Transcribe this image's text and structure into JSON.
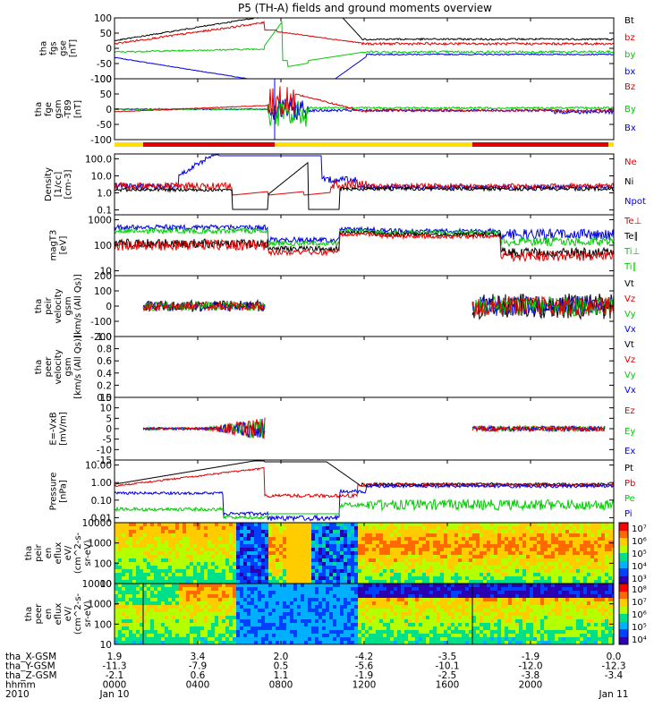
{
  "title": "P5 (TH-A) fields and ground moments overview",
  "colors": {
    "black": "#000000",
    "red": "#e00000",
    "green": "#00cc00",
    "blue": "#0000e0",
    "yellow": "#ffe000"
  },
  "chart_data": [
    {
      "id": "fgs",
      "type": "line",
      "ylabel": [
        "tha",
        "fgs",
        "gse",
        "[nT]"
      ],
      "ylim": [
        -100,
        100
      ],
      "yticks": [
        "100",
        "50",
        "0",
        "-50",
        "-100"
      ],
      "series": [
        {
          "name": "Bt",
          "color": "black"
        },
        {
          "name": "bz",
          "color": "red"
        },
        {
          "name": "by",
          "color": "green"
        },
        {
          "name": "bx",
          "color": "blue"
        }
      ]
    },
    {
      "id": "fge",
      "type": "line",
      "ylabel": [
        "tha",
        "fge",
        "gsm",
        "-T89",
        "[nT]"
      ],
      "ylim": [
        -120,
        120
      ],
      "yticks": [
        "100",
        "50",
        "0",
        "-50",
        "-100"
      ],
      "series": [
        {
          "name": "Bz",
          "color": "red"
        },
        {
          "name": "By",
          "color": "green"
        },
        {
          "name": "Bx",
          "color": "blue"
        }
      ]
    },
    {
      "id": "density",
      "type": "line",
      "scale": "log",
      "ylabel": [
        "Density",
        "[1/cc]",
        "[cm-3]"
      ],
      "yticks": [
        "100.0",
        "10.0",
        "1.0",
        "0.1"
      ],
      "series": [
        {
          "name": "Ne",
          "color": "red"
        },
        {
          "name": "Ni",
          "color": "black"
        },
        {
          "name": "Npot",
          "color": "blue"
        }
      ]
    },
    {
      "id": "temp",
      "type": "line",
      "scale": "log",
      "ylabel": [
        "magT3",
        "[eV]"
      ],
      "yticks": [
        "1000",
        "100",
        "10"
      ],
      "series": [
        {
          "name": "Te⊥",
          "color": "red"
        },
        {
          "name": "Te∥",
          "color": "black"
        },
        {
          "name": "Ti⊥",
          "color": "green"
        },
        {
          "name": "Ti∥",
          "color": "green"
        }
      ]
    },
    {
      "id": "peir_vel",
      "type": "line",
      "ylabel": [
        "tha",
        "peir",
        "velocity",
        "gsm",
        "[km/s (All Qs)]"
      ],
      "ylim": [
        -200,
        200
      ],
      "yticks": [
        "200",
        "100",
        "0",
        "-100",
        "-200"
      ],
      "series": [
        {
          "name": "Vt",
          "color": "black"
        },
        {
          "name": "Vz",
          "color": "red"
        },
        {
          "name": "Vy",
          "color": "green"
        },
        {
          "name": "Vx",
          "color": "blue"
        }
      ]
    },
    {
      "id": "peer_vel",
      "type": "line",
      "ylabel": [
        "tha",
        "peer",
        "velocity",
        "gsm",
        "[km/s (All Qs)]"
      ],
      "ylim": [
        0,
        1
      ],
      "yticks": [
        "1.0",
        "0.8",
        "0.6",
        "0.4",
        "0.2",
        "0.0"
      ],
      "series": [
        {
          "name": "Vt",
          "color": "black"
        },
        {
          "name": "Vz",
          "color": "red"
        },
        {
          "name": "Vy",
          "color": "green"
        },
        {
          "name": "Vx",
          "color": "blue"
        }
      ]
    },
    {
      "id": "efield",
      "type": "line",
      "ylabel": [
        "E=-VxB",
        "[mV/m]"
      ],
      "ylim": [
        -15,
        15
      ],
      "yticks": [
        "15",
        "10",
        "5",
        "0",
        "-5",
        "-10",
        "-15"
      ],
      "series": [
        {
          "name": "Ez",
          "color": "red"
        },
        {
          "name": "Ey",
          "color": "green"
        },
        {
          "name": "Ex",
          "color": "blue"
        }
      ]
    },
    {
      "id": "pressure",
      "type": "line",
      "scale": "log",
      "ylabel": [
        "Pressure",
        "[nPa]"
      ],
      "yticks": [
        "10.00",
        "1.00",
        "0.10",
        "0.01"
      ],
      "series": [
        {
          "name": "Pt",
          "color": "black"
        },
        {
          "name": "Pb",
          "color": "red"
        },
        {
          "name": "Pe",
          "color": "green"
        },
        {
          "name": "Pi",
          "color": "blue"
        }
      ]
    },
    {
      "id": "peir_eflux",
      "type": "heatmap",
      "ylabel": [
        "tha",
        "peir",
        "en",
        "eflux",
        "eV/",
        "(cm^2-s-",
        "sr-eV)"
      ],
      "yticks": [
        "10000",
        "1000",
        "100",
        "10"
      ],
      "colorbar_ticks": [
        "10⁷",
        "10⁶",
        "10⁵",
        "10⁴",
        "10³"
      ]
    },
    {
      "id": "peer_eflux",
      "type": "heatmap",
      "ylabel": [
        "tha",
        "peer",
        "en",
        "eflux",
        "eV/",
        "(cm^2-s-",
        "sr-eV)"
      ],
      "yticks": [
        "10000",
        "1000",
        "100",
        "10"
      ],
      "colorbar_ticks": [
        "10⁸",
        "10⁷",
        "10⁶",
        "10⁵",
        "10⁴"
      ]
    }
  ],
  "x_axis": {
    "row_labels": [
      "tha_X-GSM",
      "tha_Y-GSM",
      "tha_Z-GSM",
      "hhmm",
      "2010"
    ],
    "columns": [
      [
        "1.9",
        "-11.3",
        "-2.1",
        "0000",
        "Jan 10"
      ],
      [
        "3.4",
        "-7.9",
        "0.6",
        "0400",
        ""
      ],
      [
        "2.0",
        "0.5",
        "1.1",
        "0800",
        ""
      ],
      [
        "-4.2",
        "-5.6",
        "-1.9",
        "1200",
        ""
      ],
      [
        "-3.5",
        "-10.1",
        "-2.5",
        "1600",
        ""
      ],
      [
        "-1.9",
        "-12.0",
        "-3.8",
        "2000",
        ""
      ],
      [
        "0.0",
        "-12.3",
        "-3.4",
        "",
        "Jan 11"
      ]
    ]
  }
}
